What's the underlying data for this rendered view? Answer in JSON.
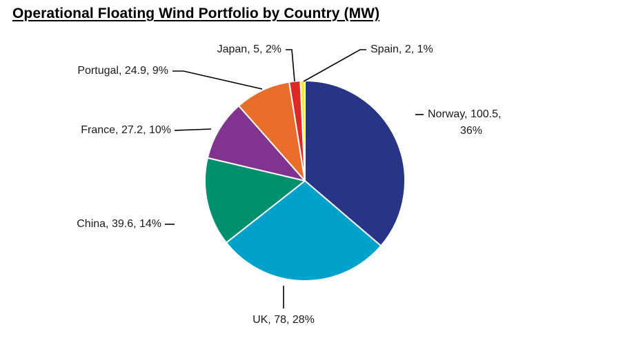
{
  "chart_data": {
    "type": "pie",
    "title": "Operational Floating Wind Portfolio by Country (MW)",
    "unit": "MW",
    "start_angle_deg": 0,
    "direction": "clockwise",
    "slices": [
      {
        "name": "Norway",
        "value": 100.5,
        "percent": "36%",
        "color": "#283587",
        "label_lines": [
          "Norway, 100.5,",
          "36%"
        ]
      },
      {
        "name": "UK",
        "value": 78,
        "percent": "28%",
        "color": "#00A2CB",
        "label_lines": [
          "UK, 78, 28%"
        ]
      },
      {
        "name": "China",
        "value": 39.6,
        "percent": "14%",
        "color": "#00906E",
        "label_lines": [
          "China, 39.6, 14%"
        ]
      },
      {
        "name": "France",
        "value": 27.2,
        "percent": "10%",
        "color": "#81348F",
        "label_lines": [
          "France, 27.2, 10%"
        ]
      },
      {
        "name": "Portugal",
        "value": 24.9,
        "percent": "9%",
        "color": "#E96D2B",
        "label_lines": [
          "Portugal, 24.9, 9%"
        ]
      },
      {
        "name": "Japan",
        "value": 5,
        "percent": "2%",
        "color": "#DE2A27",
        "label_lines": [
          "Japan, 5, 2%"
        ]
      },
      {
        "name": "Spain",
        "value": 2,
        "percent": "1%",
        "color": "#FFE625",
        "label_lines": [
          "Spain, 2, 1%"
        ]
      }
    ]
  }
}
